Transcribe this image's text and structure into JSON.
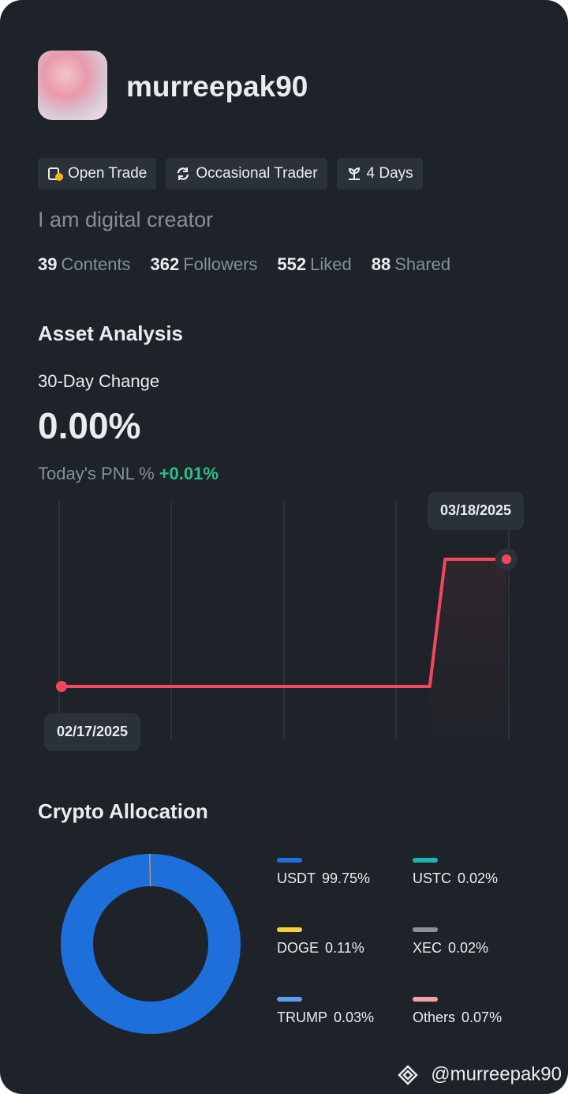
{
  "profile": {
    "username": "murreepak90",
    "tags": [
      "Open Trade",
      "Occasional Trader",
      "4 Days"
    ],
    "bio": "I am digital creator",
    "stats": [
      {
        "value": 39,
        "label": "Contents"
      },
      {
        "value": 362,
        "label": "Followers"
      },
      {
        "value": 552,
        "label": "Liked"
      },
      {
        "value": 88,
        "label": "Shared"
      }
    ]
  },
  "asset_analysis": {
    "title": "Asset Analysis",
    "change_label": "30-Day Change",
    "change": "0.00%",
    "pnl_label": "Today's PNL %",
    "pnl": "+0.01%"
  },
  "allocation_title": "Crypto Allocation",
  "chart_data": [
    {
      "type": "line",
      "color": "#f6465d",
      "categories": [
        "02/17/2025",
        null,
        null,
        null,
        null,
        null,
        null,
        null,
        null,
        null,
        null,
        null,
        null,
        null,
        null,
        null,
        null,
        null,
        null,
        null,
        null,
        null,
        null,
        null,
        null,
        null,
        null,
        null,
        null,
        "03/18/2025"
      ],
      "values": [
        0,
        0,
        0,
        0,
        0,
        0,
        0,
        0,
        0,
        0,
        0,
        0,
        0,
        0,
        0,
        0,
        0,
        0,
        0,
        0,
        0,
        0,
        0,
        0,
        0,
        0.01,
        0.01,
        0.01,
        0.01,
        0.01
      ]
    },
    {
      "type": "donut",
      "categories": [
        "USDT",
        "USTC",
        "DOGE",
        "XEC",
        "TRUMP",
        "Others"
      ],
      "values": [
        99.75,
        0.02,
        0.11,
        0.02,
        0.03,
        0.07
      ],
      "value_labels": [
        "99.75%",
        "0.02%",
        "0.11%",
        "0.02%",
        "0.03%",
        "0.07%"
      ],
      "colors": [
        "#1e6fd9",
        "#1bb5b5",
        "#f6d33c",
        "#8a8f98",
        "#5a9ff0",
        "#f5a0a8"
      ]
    }
  ],
  "footer": {
    "watermark": "@murreepak90"
  }
}
